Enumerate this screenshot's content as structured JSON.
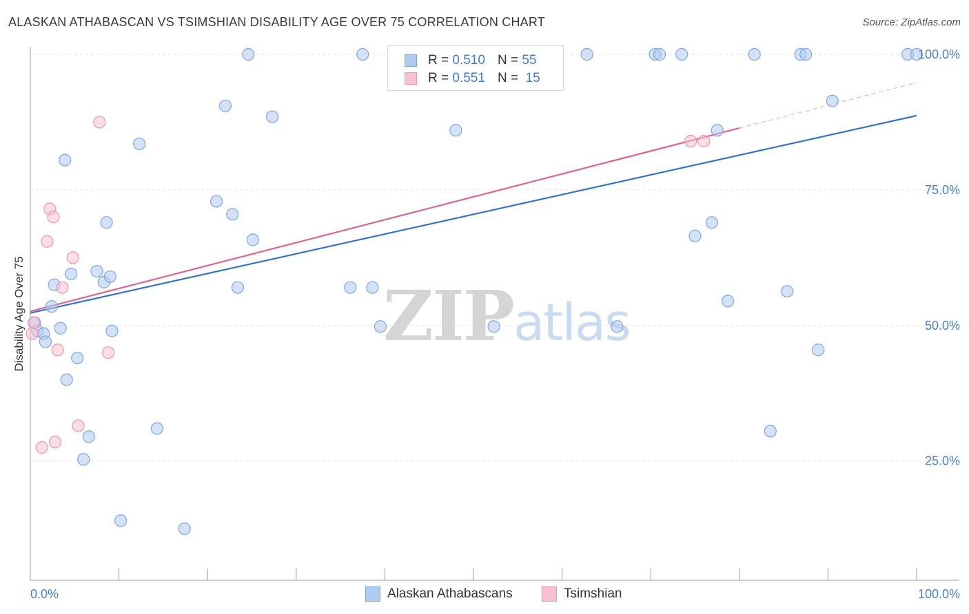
{
  "title": "ALASKAN ATHABASCAN VS TSIMSHIAN DISABILITY AGE OVER 75 CORRELATION CHART",
  "source": "Source: ZipAtlas.com",
  "watermark": {
    "zip": "ZIP",
    "atlas": "atlas"
  },
  "legend": {
    "rows": [
      {
        "r_label": "R =",
        "r_value": "0.510",
        "n_label": "N =",
        "n_value": "55"
      },
      {
        "r_label": "R =",
        "r_value": "0.551",
        "n_label": "N =",
        "n_value": "15"
      }
    ]
  },
  "colors": {
    "series1_fill": "#aecbf0",
    "series1_stroke": "#7aa6e3",
    "series1_line": "#2f73d0",
    "series2_fill": "#f7c1d1",
    "series2_stroke": "#ec94b1",
    "series2_line": "#e0628f",
    "tick_label": "#4a7fd0",
    "grid": "#e2e2e2"
  },
  "chart_data": {
    "type": "scatter",
    "title": "ALASKAN ATHABASCAN VS TSIMSHIAN DISABILITY AGE OVER 75 CORRELATION CHART",
    "xlabel": "",
    "ylabel": "Disability Age Over 75",
    "xlim": [
      0,
      100
    ],
    "ylim": [
      3,
      100
    ],
    "x_tick_labels": [
      "0.0%",
      "100.0%"
    ],
    "y_ticks": [
      25,
      50,
      75,
      100
    ],
    "y_tick_labels": [
      "25.0%",
      "50.0%",
      "75.0%",
      "100.0%"
    ],
    "grid": true,
    "legend_position": "bottom",
    "series": [
      {
        "name": "Alaskan Athabascans",
        "r": 0.51,
        "n": 55,
        "x": [
          0.5,
          0.8,
          1.5,
          1.7,
          2.4,
          2.7,
          3.4,
          3.9,
          4.1,
          4.6,
          5.3,
          6.6,
          6.0,
          7.5,
          8.3,
          8.6,
          9.0,
          9.2,
          10.2,
          12.3,
          14.3,
          17.4,
          21.0,
          22.0,
          22.8,
          23.4,
          24.6,
          25.1,
          27.3,
          36.1,
          38.6,
          37.5,
          39.5,
          48.0,
          52.3,
          55.3,
          58.4,
          62.8,
          66.2,
          70.5,
          71.0,
          73.5,
          75.0,
          76.9,
          77.5,
          78.7,
          81.7,
          83.5,
          85.4,
          86.9,
          87.5,
          88.9,
          90.5,
          99.0,
          100.0
        ],
        "y": [
          50.5,
          49.0,
          48.5,
          47.0,
          53.5,
          57.5,
          49.5,
          80.5,
          40.0,
          59.5,
          44.0,
          29.5,
          25.3,
          60.0,
          58.0,
          69.0,
          59.0,
          49.0,
          14.0,
          83.5,
          31.0,
          12.5,
          72.9,
          90.5,
          70.5,
          57.0,
          100.0,
          65.8,
          88.5,
          57.0,
          57.0,
          100.0,
          49.8,
          86.0,
          49.8,
          100.0,
          100.0,
          100.0,
          49.8,
          100.0,
          100.0,
          100.0,
          66.5,
          69.0,
          86.0,
          54.5,
          100.0,
          30.5,
          56.3,
          100.0,
          100.0,
          45.5,
          91.4,
          100.0,
          100.0
        ]
      },
      {
        "name": "Tsimshian",
        "r": 0.551,
        "n": 15,
        "x": [
          0.2,
          0.4,
          1.3,
          1.9,
          2.2,
          2.6,
          2.8,
          3.1,
          3.6,
          4.8,
          5.4,
          7.8,
          8.8,
          74.5,
          76.0
        ],
        "y": [
          48.5,
          50.5,
          27.5,
          65.5,
          71.5,
          70.0,
          28.5,
          45.5,
          57.0,
          62.5,
          31.5,
          87.5,
          45.0,
          84.0,
          84.0
        ]
      }
    ],
    "trendlines": [
      {
        "series": "Alaskan Athabascans",
        "x": [
          0,
          100
        ],
        "y": [
          52.3,
          88.7
        ]
      },
      {
        "series": "Tsimshian",
        "x": [
          0,
          80
        ],
        "y": [
          52.6,
          86.4
        ],
        "dashed_extension_to": [
          100,
          94.8
        ]
      }
    ]
  }
}
